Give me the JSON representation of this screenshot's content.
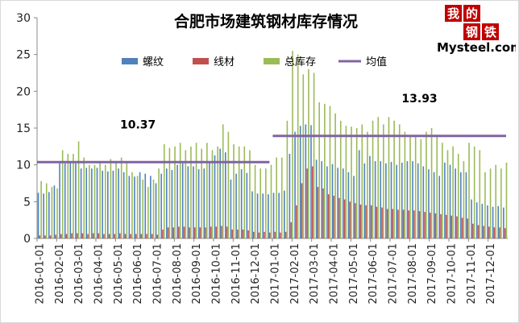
{
  "chart_data": {
    "type": "bar",
    "title": "合肥市场建筑钢材库存情况",
    "xlabel": "",
    "ylabel": "",
    "ylim": [
      0,
      30
    ],
    "yticks": [
      0,
      5,
      10,
      15,
      20,
      25,
      30
    ],
    "grid": false,
    "legend_position": "top",
    "colors": {
      "螺纹": "#4F81BD",
      "线材": "#C0504D",
      "总库存": "#9BBB59",
      "均值": "#8064A2"
    },
    "period_labels": [
      "2016-01-01",
      "2016-02-01",
      "2016-03-01",
      "2016-04-01",
      "2016-05-01",
      "2016-06-01",
      "2016-07-01",
      "2016-08-01",
      "2016-09-01",
      "2016-10-01",
      "2016-11-01",
      "2016-12-01",
      "2017-01-01",
      "2017-02-01",
      "2017-03-01",
      "2017-04-01",
      "2017-05-01",
      "2017-06-01",
      "2017-07-01",
      "2017-08-01",
      "2017-09-01",
      "2017-10-01",
      "2017-11-01",
      "2017-12-01"
    ],
    "series": [
      {
        "name": "螺纹",
        "values": [
          6.2,
          6.1,
          6.3,
          7.2,
          10.3,
          10.2,
          10.5,
          10.2,
          9.5,
          9.6,
          9.5,
          9.6,
          9.2,
          9.1,
          9.2,
          9.5,
          9.0,
          8.5,
          8.4,
          9.0,
          8.8,
          8.5,
          7.5,
          8.8,
          9.5,
          9.3,
          10.0,
          10.2,
          9.8,
          9.8,
          9.4,
          9.5,
          10.5,
          11.3,
          12.2,
          11.7,
          8.0,
          8.8,
          9.4,
          8.9,
          6.4,
          6.1,
          6.1,
          6.0,
          6.2,
          6.2,
          6.5,
          11.5,
          14.5,
          15.3,
          15.5,
          15.4,
          10.7,
          10.5,
          9.8,
          10.1,
          9.6,
          9.5,
          9.0,
          8.5,
          12.0,
          10.2,
          11.2,
          10.5,
          10.5,
          10.2,
          10.4,
          10.0,
          10.3,
          10.5,
          10.5,
          10.2,
          9.8,
          9.4,
          9.0,
          8.5,
          10.3,
          10.0,
          9.5,
          9.0,
          9.0,
          5.3,
          4.9,
          4.7,
          4.5,
          4.3,
          4.4,
          4.2
        ]
      },
      {
        "name": "线材",
        "values": [
          0.4,
          0.4,
          0.4,
          0.5,
          0.6,
          0.6,
          0.7,
          0.7,
          0.7,
          0.6,
          0.7,
          0.7,
          0.6,
          0.6,
          0.6,
          0.7,
          0.6,
          0.6,
          0.6,
          0.6,
          0.6,
          0.6,
          0.5,
          1.2,
          1.5,
          1.5,
          1.6,
          1.6,
          1.5,
          1.5,
          1.5,
          1.5,
          1.6,
          1.6,
          1.7,
          1.6,
          1.2,
          1.2,
          1.2,
          1.1,
          0.9,
          0.8,
          0.9,
          0.8,
          0.9,
          0.8,
          0.9,
          2.2,
          4.5,
          7.5,
          9.5,
          9.8,
          7.0,
          6.8,
          6.0,
          5.8,
          5.5,
          5.3,
          5.0,
          4.8,
          4.6,
          4.5,
          4.5,
          4.3,
          4.2,
          4.0,
          4.0,
          3.9,
          3.9,
          3.8,
          3.8,
          3.7,
          3.6,
          3.5,
          3.4,
          3.3,
          3.2,
          3.1,
          3.0,
          2.8,
          2.7,
          2.0,
          1.8,
          1.7,
          1.6,
          1.5,
          1.5,
          1.4
        ]
      },
      {
        "name": "总库存",
        "values": [
          7.8,
          7.5,
          7.0,
          6.8,
          12.0,
          11.5,
          11.5,
          13.2,
          11.0,
          10.0,
          10.0,
          10.5,
          10.0,
          10.8,
          10.5,
          11.0,
          10.5,
          9.0,
          8.5,
          8.0,
          7.0,
          8.0,
          9.5,
          12.8,
          12.3,
          12.5,
          13.0,
          12.0,
          12.5,
          13.0,
          12.2,
          13.0,
          12.0,
          12.5,
          15.5,
          14.5,
          12.8,
          12.5,
          12.5,
          12.0,
          10.0,
          9.5,
          9.5,
          10.0,
          11.0,
          11.0,
          16.0,
          25.5,
          25.0,
          22.3,
          23.0,
          22.5,
          18.5,
          18.3,
          18.0,
          17.0,
          16.0,
          15.3,
          15.2,
          15.0,
          15.5,
          14.5,
          16.0,
          16.5,
          15.5,
          16.5,
          16.0,
          15.5,
          14.5,
          14.0,
          14.0,
          13.5,
          14.5,
          15.0,
          14.0,
          13.0,
          12.0,
          12.5,
          11.5,
          10.5,
          13.0,
          12.5,
          12.0,
          9.0,
          9.5,
          10.0,
          9.5,
          10.3
        ]
      },
      {
        "name": "均值",
        "segments": [
          {
            "label": "10.37",
            "value": 10.37,
            "from": "2016-01-01",
            "to": "2016-12-31"
          },
          {
            "label": "13.93",
            "value": 13.93,
            "from": "2017-01-01",
            "to": "2017-12-31"
          }
        ]
      }
    ]
  },
  "logo": {
    "glyph_1": "我",
    "glyph_2": "的",
    "glyph_3": "钢",
    "glyph_4": "铁",
    "wordmark": "Mysteel.com"
  }
}
